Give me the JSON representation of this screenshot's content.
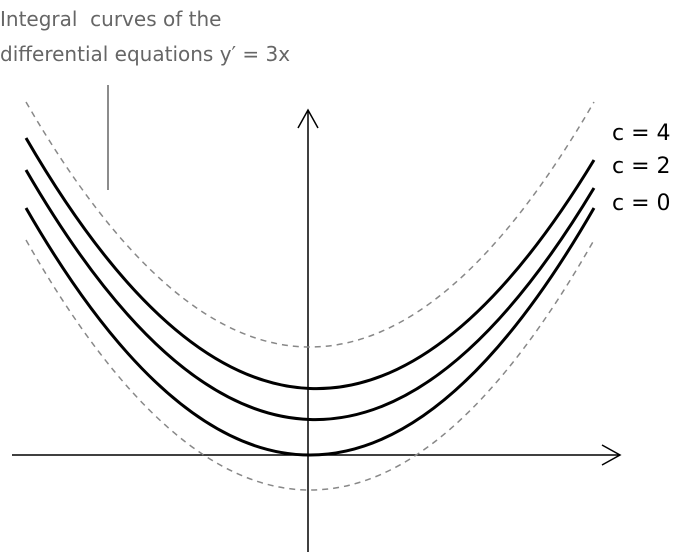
{
  "title": {
    "line1": "Integral  curves of the",
    "line2": "differential equations y′ = 3x"
  },
  "curve_labels": [
    "c = 4",
    "c = 2",
    "c = 0"
  ]
}
